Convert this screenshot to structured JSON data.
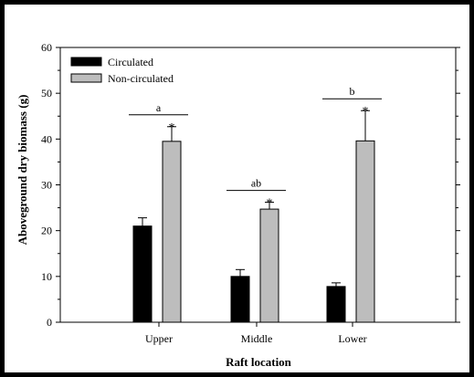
{
  "chart_data": {
    "type": "bar",
    "categories": [
      "Upper",
      "Middle",
      "Lower"
    ],
    "series": [
      {
        "name": "Circulated",
        "values": [
          21,
          10,
          7.8
        ],
        "errors": [
          1.8,
          1.5,
          0.8
        ],
        "color": "#000000"
      },
      {
        "name": "Non-circulated",
        "values": [
          39.5,
          24.7,
          39.6
        ],
        "errors": [
          3.2,
          1.5,
          6.6
        ],
        "color": "#bdbdbd"
      }
    ],
    "xlabel": "Raft location",
    "ylabel": "Aboveground dry biomass (g)",
    "ylim": [
      0,
      60
    ],
    "yticks": [
      0,
      10,
      20,
      30,
      40,
      50,
      60
    ],
    "significance_letters": [
      "a",
      "ab",
      "b"
    ],
    "asterisk_label": "*",
    "legend_position": "top-left",
    "grid": false
  }
}
